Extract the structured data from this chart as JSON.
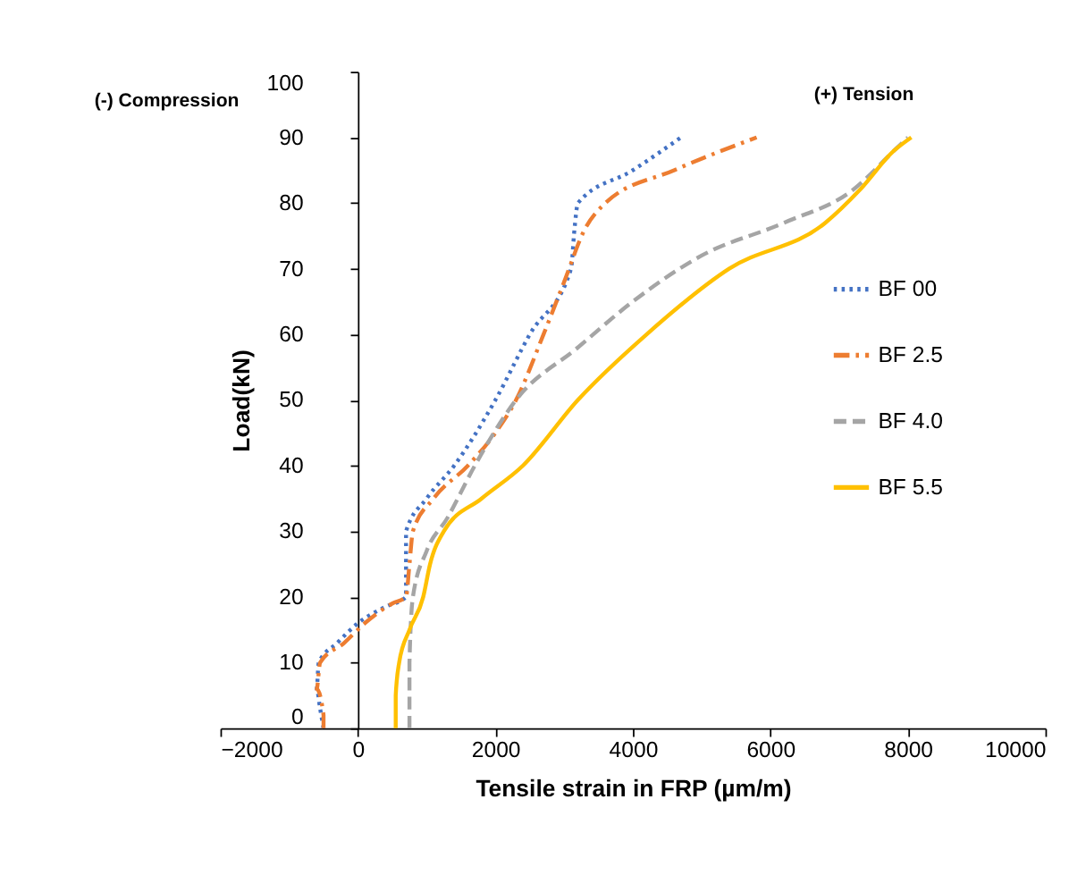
{
  "chart_data": {
    "type": "line",
    "xlabel": "Tensile strain in FRP (µm/m)",
    "ylabel": "Load(kN)",
    "annotations": [
      "(-) Compression",
      "(+) Tension"
    ],
    "xlim": [
      -2000,
      10000
    ],
    "xticks": [
      -2000,
      0,
      2000,
      4000,
      6000,
      8000,
      10000
    ],
    "ylim": [
      0,
      100
    ],
    "yticks": [
      0,
      10,
      20,
      30,
      40,
      50,
      60,
      70,
      80,
      90,
      100
    ],
    "grid": false,
    "legend": "right",
    "marker": "none",
    "series": [
      {
        "name": "BF 00",
        "color": "#4472c4",
        "line_style": "dotted",
        "x": [
          -500,
          -550,
          -600,
          -570,
          -300,
          0,
          400,
          700,
          700,
          700,
          1000,
          1400,
          2000,
          2500,
          3100,
          3150,
          3200,
          4000,
          4700
        ],
        "values": [
          0,
          3,
          6,
          10,
          13,
          16,
          18.5,
          20,
          25,
          30,
          35,
          40,
          50,
          60,
          70,
          76,
          80,
          85,
          90
        ]
      },
      {
        "name": "BF 2.5",
        "color": "#ed7d31",
        "line_style": "dashdot",
        "x": [
          -500,
          -500,
          -600,
          -550,
          -200,
          100,
          500,
          700,
          750,
          800,
          1100,
          1600,
          2000,
          2300,
          2700,
          3000,
          3300,
          3600,
          4600,
          5800
        ],
        "values": [
          0,
          2,
          6,
          10,
          13,
          16,
          19,
          20,
          25,
          30,
          35,
          40,
          45,
          50,
          60,
          68,
          76,
          80,
          85,
          90
        ]
      },
      {
        "name": "BF 4.0",
        "color": "#a5a5a5",
        "line_style": "dashed",
        "x": [
          750,
          750,
          800,
          1000,
          1300,
          1700,
          2300,
          3200,
          4000,
          5000,
          6200,
          7200,
          7800,
          8000
        ],
        "values": [
          0,
          10,
          20,
          27,
          32,
          40,
          50,
          58,
          65,
          72,
          77,
          82,
          88,
          90
        ]
      },
      {
        "name": "BF 5.5",
        "color": "#ffc000",
        "line_style": "solid",
        "x": [
          550,
          550,
          600,
          750,
          950,
          1050,
          1250,
          1800,
          2400,
          3200,
          4200,
          5400,
          6800,
          7300,
          7800,
          8050
        ],
        "values": [
          0,
          5,
          10,
          15,
          20,
          25,
          30,
          35,
          40,
          50,
          60,
          70,
          77,
          82,
          88,
          90
        ]
      }
    ]
  }
}
